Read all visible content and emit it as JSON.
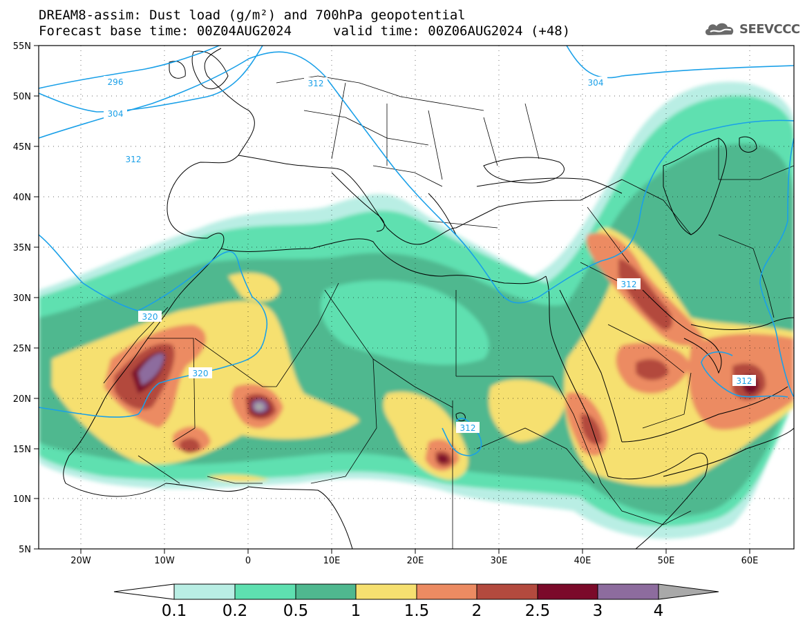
{
  "header": {
    "title_line1": "DREAM8-assim: Dust load (g/m²) and 700hPa geopotential",
    "title_line2_left": "Forecast base time: 00Z04AUG2024",
    "title_line2_right": "valid time: 00Z06AUG2024 (+48)",
    "logo_text": "SEEVCCC",
    "logo_icon": "cloud-icon"
  },
  "map": {
    "lon_labels": [
      "20W",
      "10W",
      "0",
      "10E",
      "20E",
      "30E",
      "40E",
      "50E",
      "60E"
    ],
    "lat_labels": [
      "55N",
      "50N",
      "45N",
      "40N",
      "35N",
      "30N",
      "25N",
      "20N",
      "15N",
      "10N",
      "5N"
    ],
    "contour_labels": [
      "296",
      "304",
      "312",
      "304",
      "312",
      "320",
      "320",
      "312",
      "312",
      "312"
    ],
    "contour_color": "#1aa0e8"
  },
  "colorbar": {
    "labels": [
      "0.1",
      "0.2",
      "0.5",
      "1",
      "1.5",
      "2",
      "2.5",
      "3",
      "4"
    ],
    "colors": [
      "#ffffff",
      "#b9eee4",
      "#5ee0b0",
      "#4fb88f",
      "#f6e070",
      "#ec8b62",
      "#b34a3e",
      "#7b0a2a",
      "#8d6c9e",
      "#a9a9a9"
    ]
  }
}
